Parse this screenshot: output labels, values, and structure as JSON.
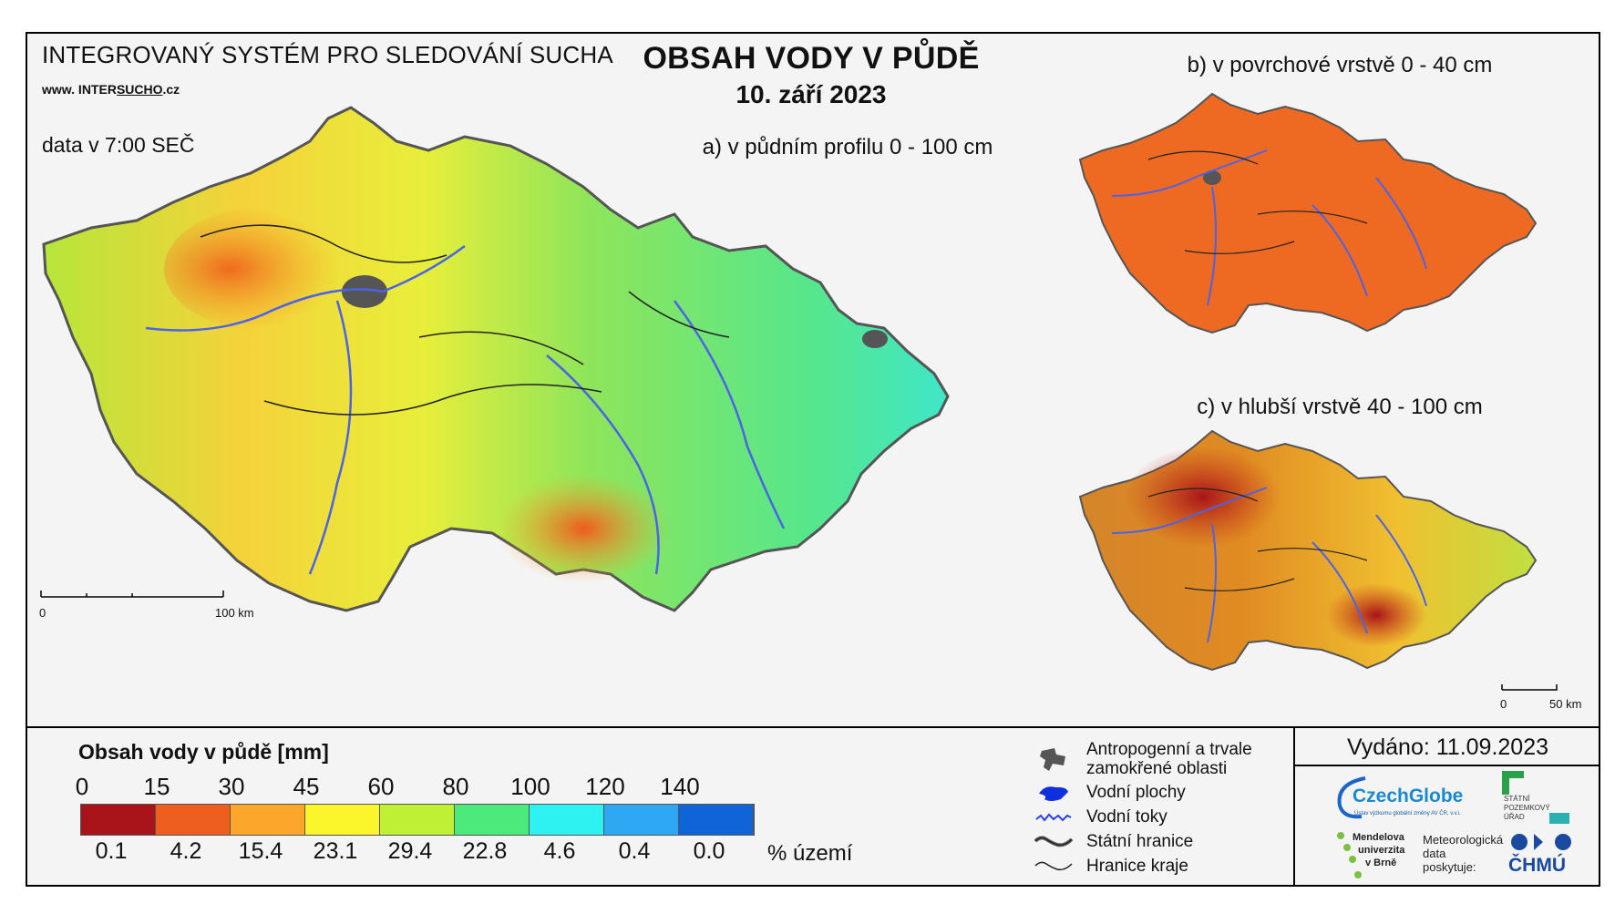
{
  "header": {
    "system_title": "INTEGROVANÝ SYSTÉM PRO SLEDOVÁNÍ SUCHA",
    "website_prefix": "www. INTER",
    "website_brand": "SUCHO",
    "website_suffix": ".cz",
    "data_time": "data v 7:00 SEČ",
    "title": "OBSAH VODY V PŮDĚ",
    "date": "10. září 2023"
  },
  "maps": {
    "main_label": "a) v půdním profilu 0 - 100 cm",
    "surface_label": "b) v povrchové vrstvě 0 - 40 cm",
    "deep_label": "c) v hlubší vrstvě 40 - 100 cm",
    "main_scale": {
      "start": "0",
      "end": "100 km"
    },
    "small_scale": {
      "start": "0",
      "end": "50 km"
    }
  },
  "legend": {
    "title": "Obsah vody v půdě  [mm]",
    "bounds": [
      "0",
      "15",
      "30",
      "45",
      "60",
      "80",
      "100",
      "120",
      "140"
    ],
    "colors": [
      "#a8141a",
      "#ee5e1e",
      "#fca72c",
      "#fbf52c",
      "#c0f034",
      "#4cea7a",
      "#2ef2f2",
      "#2ea8f2",
      "#1064d8"
    ],
    "percent_area": [
      "0.1",
      "4.2",
      "15.4",
      "23.1",
      "29.4",
      "22.8",
      "4.6",
      "0.4",
      "0.0"
    ],
    "percent_unit": "% území"
  },
  "symbols": {
    "anthropogenic_line1": "Antropogenní a trvale",
    "anthropogenic_line2": "zamokřené oblasti",
    "water_bodies": "Vodní plochy",
    "water_streams": "Vodní toky",
    "state_border": "Státní hranice",
    "region_border": "Hranice kraje"
  },
  "footer": {
    "issued": "Vydáno: 11.09.2023",
    "czechglobe": "CzechGlobe",
    "czechglobe_sub": "Ústav výzkumu globální změny AV ČR, v.v.i.",
    "spu_line1": "STÁTNÍ",
    "spu_line2": "POZEMKOVÝ",
    "spu_line3": "ÚŘAD",
    "mendel_line1": "Mendelova",
    "mendel_line2": "univerzita",
    "mendel_line3": "v Brně",
    "meteo_line1": "Meteorologická",
    "meteo_line2": "data",
    "meteo_line3": "poskytuje:",
    "chmu": "ČHMÚ"
  }
}
